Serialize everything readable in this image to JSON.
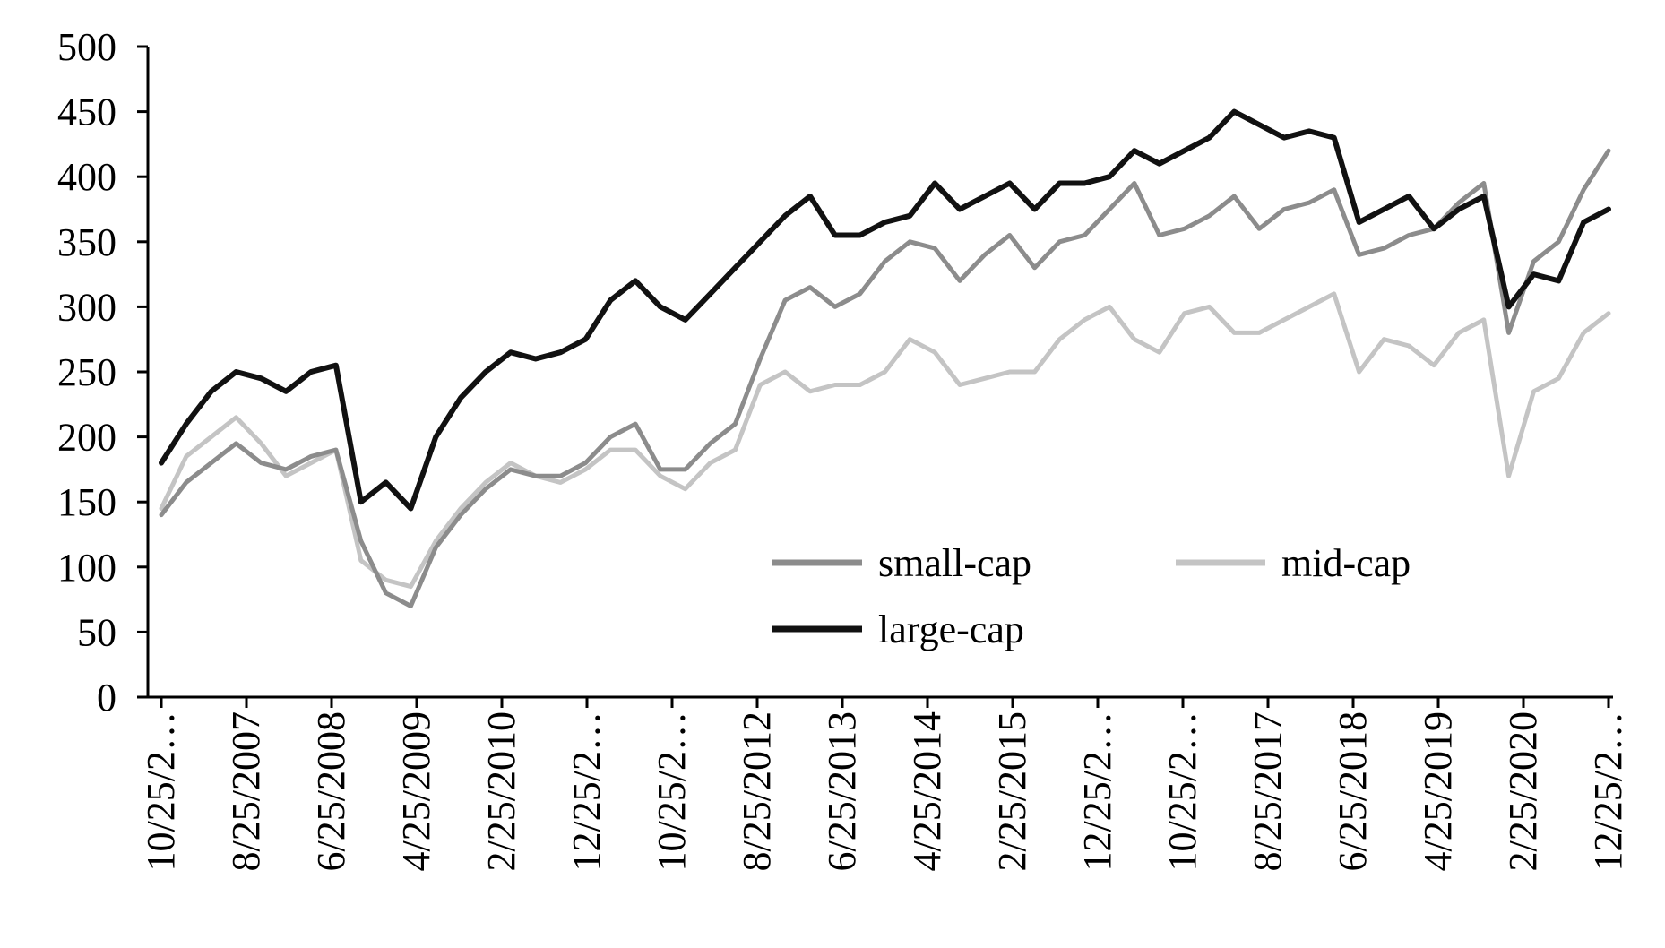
{
  "chart_data": {
    "type": "line",
    "title": "",
    "xlabel": "",
    "ylabel": "",
    "ylim": [
      0,
      500
    ],
    "yticks": [
      0,
      50,
      100,
      150,
      200,
      250,
      300,
      350,
      400,
      450,
      500
    ],
    "grid": false,
    "legend": "bottom-right, inside plot area, two columns",
    "x_tick_labels": [
      "10/25/2…",
      "8/25/2007",
      "6/25/2008",
      "4/25/2009",
      "2/25/2010",
      "12/25/2…",
      "10/25/2…",
      "8/25/2012",
      "6/25/2013",
      "4/25/2014",
      "2/25/2015",
      "12/25/2…",
      "10/25/2…",
      "8/25/2017",
      "6/25/2018",
      "4/25/2019",
      "2/25/2020",
      "12/25/2…"
    ],
    "x": [
      "2006-10",
      "2007-01",
      "2007-04",
      "2007-07",
      "2007-10",
      "2008-01",
      "2008-04",
      "2008-07",
      "2008-10",
      "2009-01",
      "2009-04",
      "2009-07",
      "2009-10",
      "2010-01",
      "2010-04",
      "2010-07",
      "2010-10",
      "2011-01",
      "2011-04",
      "2011-07",
      "2011-10",
      "2012-01",
      "2012-04",
      "2012-07",
      "2012-10",
      "2013-01",
      "2013-04",
      "2013-07",
      "2013-10",
      "2014-01",
      "2014-04",
      "2014-07",
      "2014-10",
      "2015-01",
      "2015-04",
      "2015-07",
      "2015-10",
      "2016-01",
      "2016-04",
      "2016-07",
      "2016-10",
      "2017-01",
      "2017-04",
      "2017-07",
      "2017-10",
      "2018-01",
      "2018-04",
      "2018-07",
      "2018-10",
      "2019-01",
      "2019-04",
      "2019-07",
      "2019-10",
      "2020-01",
      "2020-03",
      "2020-06",
      "2020-09",
      "2020-12",
      "2021-03"
    ],
    "series": [
      {
        "name": "small-cap",
        "color": "#8c8c8c",
        "values": [
          140,
          165,
          180,
          195,
          180,
          175,
          185,
          190,
          120,
          80,
          70,
          115,
          140,
          160,
          175,
          170,
          170,
          180,
          200,
          210,
          175,
          175,
          195,
          210,
          260,
          305,
          315,
          300,
          310,
          335,
          350,
          345,
          320,
          340,
          355,
          330,
          350,
          355,
          375,
          395,
          355,
          360,
          370,
          385,
          360,
          375,
          380,
          390,
          340,
          345,
          355,
          360,
          380,
          395,
          280,
          335,
          350,
          390,
          420
        ]
      },
      {
        "name": "mid-cap",
        "color": "#c4c4c4",
        "values": [
          145,
          185,
          200,
          215,
          195,
          170,
          180,
          190,
          105,
          90,
          85,
          120,
          145,
          165,
          180,
          170,
          165,
          175,
          190,
          190,
          170,
          160,
          180,
          190,
          240,
          250,
          235,
          240,
          240,
          250,
          275,
          265,
          240,
          245,
          250,
          250,
          275,
          290,
          300,
          275,
          265,
          295,
          300,
          280,
          280,
          290,
          300,
          310,
          250,
          275,
          270,
          255,
          280,
          290,
          170,
          235,
          245,
          280,
          295
        ]
      },
      {
        "name": "large-cap",
        "color": "#111111",
        "values": [
          180,
          210,
          235,
          250,
          245,
          235,
          250,
          255,
          150,
          165,
          145,
          200,
          230,
          250,
          265,
          260,
          265,
          275,
          305,
          320,
          300,
          290,
          310,
          330,
          350,
          370,
          385,
          355,
          355,
          365,
          370,
          395,
          375,
          385,
          395,
          375,
          395,
          395,
          400,
          420,
          410,
          420,
          430,
          450,
          440,
          430,
          435,
          430,
          365,
          375,
          385,
          360,
          375,
          385,
          300,
          325,
          320,
          365,
          375
        ]
      }
    ]
  }
}
